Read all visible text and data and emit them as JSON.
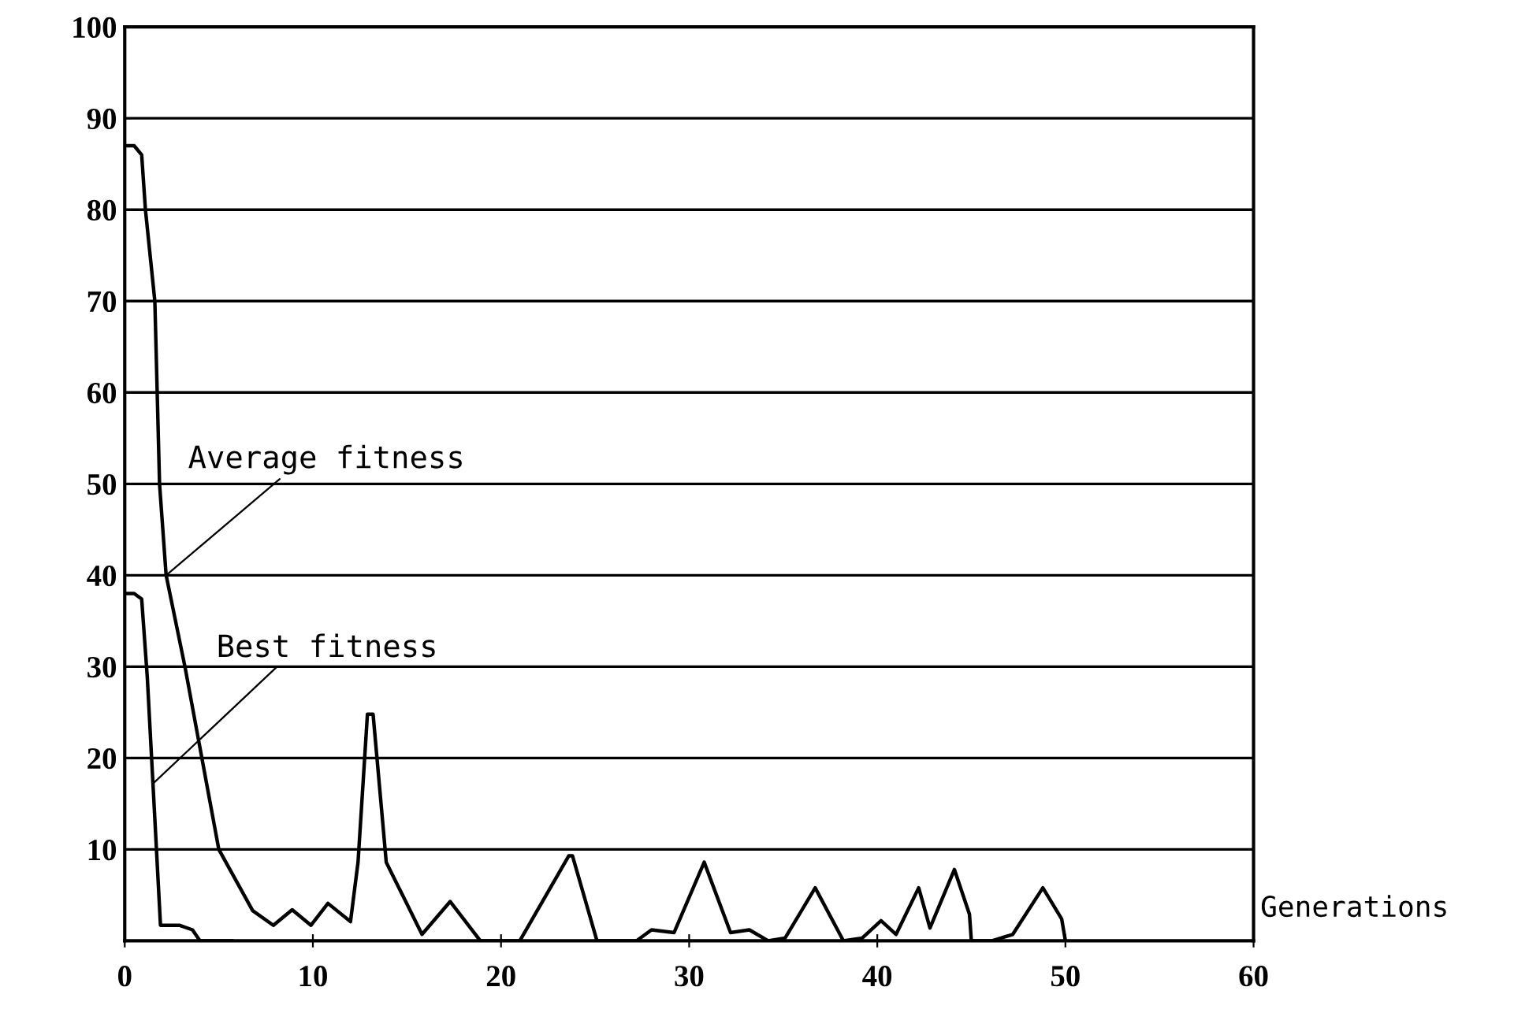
{
  "chart_data": {
    "type": "line",
    "xlabel": "Generations",
    "x": [
      0,
      0.5,
      0.9,
      1.1,
      1.6,
      1.85,
      2.2,
      3.2,
      4.1,
      5.0,
      6.8,
      7.9,
      8.9,
      9.9,
      10.8,
      12.0,
      12.4,
      12.9,
      13.2,
      13.9,
      15.8,
      17.3,
      18.9,
      21.0,
      23.6,
      23.8,
      25.1,
      27.2,
      28.0,
      29.2,
      30.8,
      32.2,
      33.2,
      34.2,
      35.1,
      36.7,
      38.2,
      39.2,
      40.2,
      41.0,
      42.2,
      42.8,
      44.1,
      44.9,
      45.0,
      46.1,
      47.2,
      48.8,
      49.8,
      50.0
    ],
    "series": [
      {
        "name": "Average fitness",
        "color": "#000000",
        "values": [
          87,
          87,
          86,
          80,
          70,
          50,
          40,
          30,
          20,
          10,
          3.3,
          1.7,
          3.4,
          1.7,
          4.1,
          2.1,
          8.6,
          24.8,
          24.8,
          8.6,
          0.7,
          4.3,
          0,
          0,
          9.3,
          9.3,
          0,
          0,
          1.2,
          0.9,
          8.6,
          0.9,
          1.2,
          0,
          0.3,
          5.8,
          0,
          0.3,
          2.2,
          0.7,
          5.8,
          1.4,
          7.8,
          2.9,
          0,
          0,
          0.7,
          5.8,
          2.4,
          0
        ]
      },
      {
        "name": "Best fitness",
        "color": "#000000",
        "x": [
          0,
          0.5,
          0.9,
          1.2,
          1.5,
          1.9,
          2.9,
          3.6,
          4.0,
          5.7
        ],
        "values": [
          38,
          38,
          37.4,
          28.8,
          17.2,
          1.7,
          1.7,
          1.2,
          0,
          0
        ]
      }
    ],
    "xlim": [
      0,
      60
    ],
    "xticks": [
      0,
      10,
      20,
      30,
      40,
      50,
      60
    ],
    "ylim": [
      0,
      100
    ],
    "yticks": [
      10,
      20,
      30,
      40,
      50,
      60,
      70,
      80,
      90,
      100
    ],
    "grid": "y",
    "legend": false
  }
}
